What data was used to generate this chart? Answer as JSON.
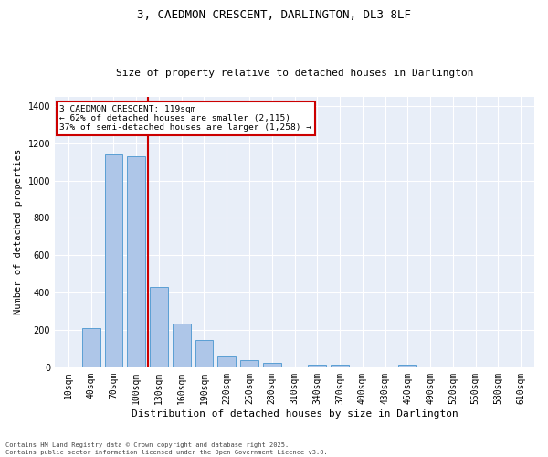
{
  "title": "3, CAEDMON CRESCENT, DARLINGTON, DL3 8LF",
  "subtitle": "Size of property relative to detached houses in Darlington",
  "xlabel": "Distribution of detached houses by size in Darlington",
  "ylabel": "Number of detached properties",
  "bar_color": "#aec6e8",
  "bar_edge_color": "#5a9fd4",
  "bg_color": "#e8eef8",
  "grid_color": "white",
  "annotation_box_color": "#cc0000",
  "vline_color": "#cc0000",
  "categories": [
    "10sqm",
    "40sqm",
    "70sqm",
    "100sqm",
    "130sqm",
    "160sqm",
    "190sqm",
    "220sqm",
    "250sqm",
    "280sqm",
    "310sqm",
    "340sqm",
    "370sqm",
    "400sqm",
    "430sqm",
    "460sqm",
    "490sqm",
    "520sqm",
    "550sqm",
    "580sqm",
    "610sqm"
  ],
  "values": [
    0,
    210,
    1140,
    1130,
    430,
    235,
    145,
    58,
    38,
    22,
    0,
    13,
    14,
    0,
    0,
    13,
    0,
    0,
    0,
    0,
    0
  ],
  "vline_x": 3.5,
  "annotation_line1": "3 CAEDMON CRESCENT: 119sqm",
  "annotation_line2": "← 62% of detached houses are smaller (2,115)",
  "annotation_line3": "37% of semi-detached houses are larger (1,258) →",
  "footnote1": "Contains HM Land Registry data © Crown copyright and database right 2025.",
  "footnote2": "Contains public sector information licensed under the Open Government Licence v3.0.",
  "ylim": [
    0,
    1450
  ],
  "bar_width": 0.8,
  "title_fontsize": 9,
  "subtitle_fontsize": 8,
  "xlabel_fontsize": 8,
  "ylabel_fontsize": 7.5,
  "tick_fontsize": 7,
  "annotation_fontsize": 6.8,
  "footnote_fontsize": 5
}
